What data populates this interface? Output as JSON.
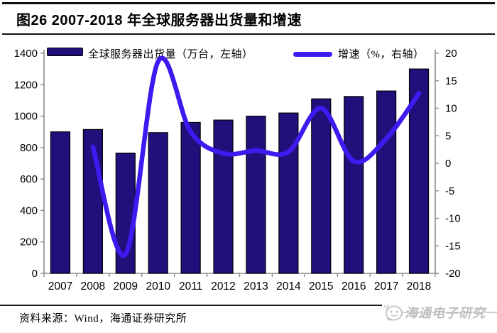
{
  "header": {
    "title": "图26  2007-2018 年全球服务器出货量和增速"
  },
  "legend": {
    "bar_label": "全球服务器出货量（万台，左轴）",
    "line_label": "增速（%，右轴）"
  },
  "chart_data": {
    "type": "bar+line",
    "title": "2007-2018 年全球服务器出货量和增速",
    "categories": [
      "2007",
      "2008",
      "2009",
      "2010",
      "2011",
      "2012",
      "2013",
      "2014",
      "2015",
      "2016",
      "2017",
      "2018"
    ],
    "series": [
      {
        "name": "全球服务器出货量（万台，左轴）",
        "type": "bar",
        "axis": "left",
        "unit": "万台",
        "values": [
          900,
          915,
          765,
          895,
          960,
          975,
          1000,
          1020,
          1110,
          1125,
          1160,
          1300
        ]
      },
      {
        "name": "增速（%，右轴）",
        "type": "line",
        "axis": "right",
        "unit": "%",
        "start_category": "2008",
        "values": [
          3.0,
          -16.5,
          18.5,
          5.7,
          1.8,
          2.3,
          2.1,
          10.0,
          0.4,
          4.5,
          12.7
        ]
      }
    ],
    "left_axis": {
      "min": 0,
      "max": 1400,
      "step": 200,
      "tick_labels": [
        "1400",
        "1200",
        "1000",
        "800",
        "600",
        "400",
        "200",
        "0"
      ]
    },
    "right_axis": {
      "min": -20,
      "max": 20,
      "step": 5,
      "tick_labels": [
        "20",
        "15",
        "10",
        "5",
        "0",
        "-5",
        "-10",
        "-15",
        "-20"
      ]
    },
    "grid": false,
    "legend_position": "top"
  },
  "footer": {
    "source": "资料来源：Wind，海通证券研究所",
    "watermark": "海通电子研究"
  },
  "colors": {
    "bar_fill": "#21107c",
    "bar_border": "#000000",
    "line": "#4019f0",
    "axis": "#8c8c8c",
    "text": "#000000",
    "watermark": "#bdbdbd"
  }
}
